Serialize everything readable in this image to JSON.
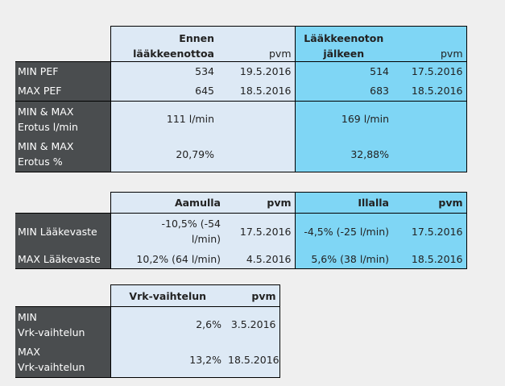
{
  "table1": {
    "header": {
      "col1": [
        "Ennen",
        "lääkkeenottoa"
      ],
      "col2": "pvm",
      "col3": [
        "Lääkkeenoton",
        "jälkeen"
      ],
      "col4": "pvm"
    },
    "rows": [
      {
        "label": [
          "MIN PEF"
        ],
        "v1": "534",
        "d1": "19.5.2016",
        "v2": "514",
        "d2": "17.5.2016"
      },
      {
        "label": [
          "MAX PEF"
        ],
        "v1": "645",
        "d1": "18.5.2016",
        "v2": "683",
        "d2": "18.5.2016"
      },
      {
        "label": [
          "MIN & MAX",
          "Erotus l/min"
        ],
        "v1": "111 l/min",
        "v2": "169 l/min"
      },
      {
        "label": [
          "MIN & MAX",
          "Erotus %"
        ],
        "v1": "20,79%",
        "v2": "32,88%"
      }
    ]
  },
  "table2": {
    "header": {
      "col1": "Aamulla",
      "col2": "pvm",
      "col3": "Illalla",
      "col4": "pvm"
    },
    "rows": [
      {
        "label": "MIN Lääkevaste",
        "v1": [
          "-10,5% (-54",
          "l/min)"
        ],
        "d1": "17.5.2016",
        "v2": "-4,5% (-25 l/min)",
        "d2": "17.5.2016"
      },
      {
        "label": "MAX Lääkevaste",
        "v1": [
          "10,2% (64 l/min)"
        ],
        "d1": "4.5.2016",
        "v2": "5,6% (38 l/min)",
        "d2": "18.5.2016"
      }
    ]
  },
  "table3": {
    "header": {
      "col1": "Vrk-vaihtelun",
      "col2": "pvm"
    },
    "rows": [
      {
        "label": [
          "MIN",
          "Vrk-vaihtelun"
        ],
        "v1": "2,6%",
        "d1": "3.5.2016"
      },
      {
        "label": [
          "MAX",
          "Vrk-vaihtelun"
        ],
        "v1": "13,2%",
        "d1": "18.5.2016"
      }
    ]
  }
}
